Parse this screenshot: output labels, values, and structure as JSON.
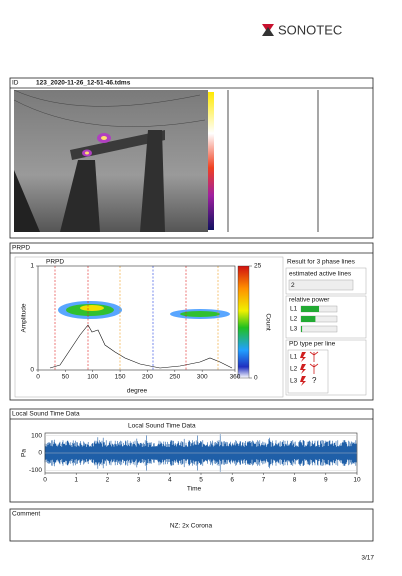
{
  "logo": "SONOTEC",
  "id_section": {
    "label": "ID",
    "file": "123_2020-11-26_12-51-46.tdms"
  },
  "prpd": {
    "header": "PRPD",
    "chart_title": "PRPD",
    "y_label": "Amplitude",
    "x_label": "degree",
    "xlim": [
      0,
      360
    ],
    "xticks": [
      0,
      50,
      100,
      150,
      200,
      250,
      300,
      360
    ],
    "ylim": [
      0,
      1
    ],
    "yticks": [
      0,
      1
    ],
    "colorbar_label": "Count",
    "colorbar_ticks": [
      0,
      25
    ],
    "colorbar_lim": [
      0,
      25
    ],
    "result_title": "Result for 3 phase lines",
    "active_lines_label": "estimated active lines",
    "active_lines": 2,
    "relative_power_label": "relative power",
    "power_lim": [
      0,
      100
    ],
    "power": [
      {
        "line": "L1",
        "value": 50
      },
      {
        "line": "L2",
        "value": 40
      },
      {
        "line": "L3",
        "value": 3
      }
    ],
    "pd_type_label": "PD type per line",
    "pd_lines": [
      "L1",
      "L2",
      "L3"
    ],
    "unknown_type": "?"
  },
  "sound": {
    "header": "Local Sound Time Data",
    "chart_title": "Local Sound Time Data",
    "y_label": "Pa",
    "x_label": "Time",
    "xlim": [
      0,
      10
    ],
    "xticks": [
      0,
      1,
      2,
      3,
      4,
      5,
      6,
      7,
      8,
      9,
      10
    ],
    "ylim": [
      -115,
      115
    ],
    "yticks": [
      -100,
      0,
      100
    ]
  },
  "comment": {
    "header": "Comment",
    "text": "NZ: 2x Corona"
  },
  "page": "3/17"
}
